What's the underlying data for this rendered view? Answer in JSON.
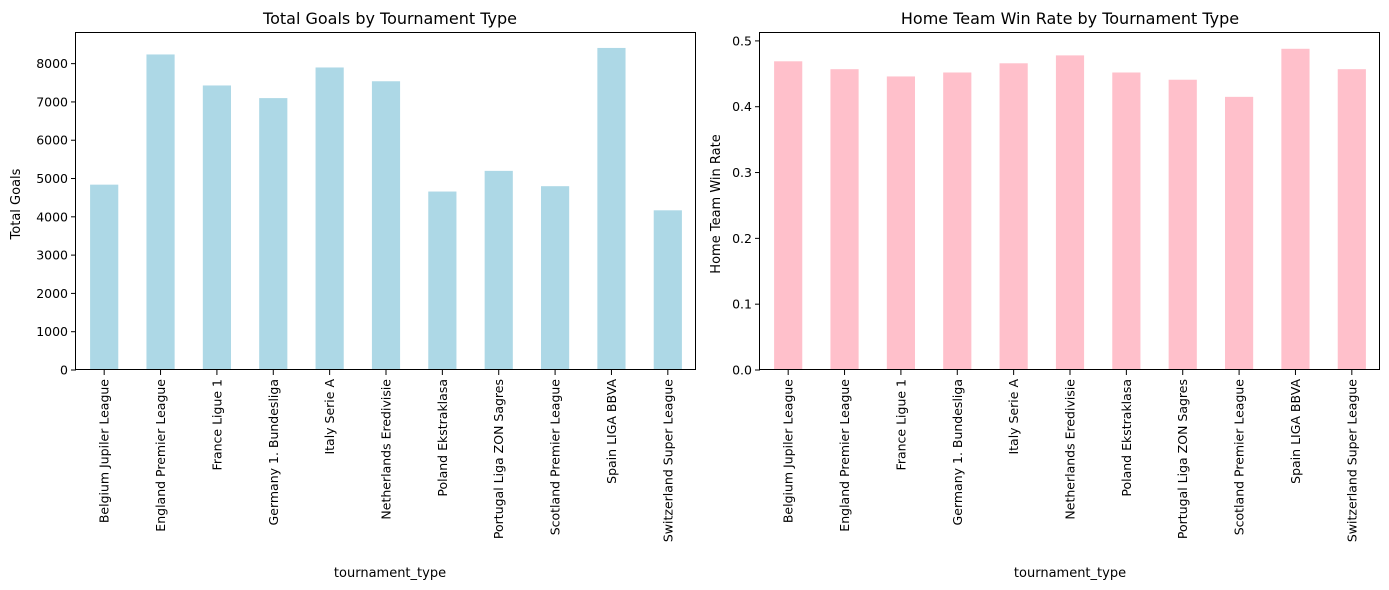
{
  "chart_data": [
    {
      "type": "bar",
      "title": "Total Goals by Tournament Type",
      "xlabel": "tournament_type",
      "ylabel": "Total Goals",
      "categories": [
        "Belgium Jupiler League",
        "England Premier League",
        "France Ligue 1",
        "Germany 1. Bundesliga",
        "Italy Serie A",
        "Netherlands Eredivisie",
        "Poland Ekstraklasa",
        "Portugal Liga ZON Sagres",
        "Scotland Premier League",
        "Spain LIGA BBVA",
        "Switzerland Super League"
      ],
      "values": [
        4840,
        8240,
        7430,
        7100,
        7900,
        7540,
        4660,
        5200,
        4800,
        8410,
        4170
      ],
      "ylim": [
        0,
        8800
      ],
      "yticks": [
        0,
        1000,
        2000,
        3000,
        4000,
        5000,
        6000,
        7000,
        8000
      ],
      "ytick_labels": [
        "0",
        "1000",
        "2000",
        "3000",
        "4000",
        "5000",
        "6000",
        "7000",
        "8000"
      ],
      "color": "#add8e6",
      "grid": false
    },
    {
      "type": "bar",
      "title": "Home Team Win Rate by Tournament Type",
      "xlabel": "tournament_type",
      "ylabel": "Home Team Win Rate",
      "categories": [
        "Belgium Jupiler League",
        "England Premier League",
        "France Ligue 1",
        "Germany 1. Bundesliga",
        "Italy Serie A",
        "Netherlands Eredivisie",
        "Poland Ekstraklasa",
        "Portugal Liga ZON Sagres",
        "Scotland Premier League",
        "Spain LIGA BBVA",
        "Switzerland Super League"
      ],
      "values": [
        0.469,
        0.457,
        0.446,
        0.452,
        0.466,
        0.478,
        0.452,
        0.441,
        0.415,
        0.488,
        0.457
      ],
      "ylim": [
        0,
        0.512
      ],
      "yticks": [
        0.0,
        0.1,
        0.2,
        0.3,
        0.4,
        0.5
      ],
      "ytick_labels": [
        "0.0",
        "0.1",
        "0.2",
        "0.3",
        "0.4",
        "0.5"
      ],
      "color": "#ffc0cb",
      "grid": false
    }
  ]
}
